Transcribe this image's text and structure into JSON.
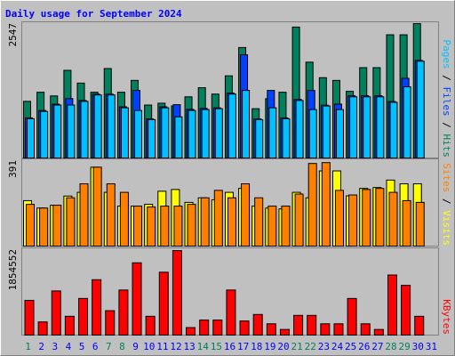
{
  "chart_data": [
    {
      "type": "bar",
      "title": "Daily usage for September 2024",
      "legend_separator": " / ",
      "ylim": [
        0,
        2547
      ],
      "yticks": [
        2547
      ],
      "series": [
        {
          "name": "Hits",
          "color": "#00805c",
          "values": [
            1073,
            1246,
            1176,
            1661,
            1419,
            1246,
            1695,
            1246,
            1470,
            1003,
            1038,
            986,
            1159,
            1332,
            1211,
            1557,
            2093,
            934,
            1124,
            1246,
            2481,
            1816,
            1522,
            1470,
            1263,
            1712,
            1712,
            2335,
            2335,
            2547,
            0
          ]
        },
        {
          "name": "Files",
          "color": "#0040ff",
          "values": [
            760,
            900,
            1020,
            1125,
            1090,
            1210,
            1210,
            970,
            1280,
            740,
            970,
            1010,
            920,
            940,
            950,
            1230,
            1955,
            740,
            1280,
            760,
            1110,
            1280,
            1000,
            1020,
            1180,
            1180,
            1180,
            1070,
            1510,
            1850,
            0
          ]
        },
        {
          "name": "Pages",
          "color": "#00c0ff",
          "values": [
            744,
            882,
            1003,
            1003,
            1073,
            1194,
            1194,
            951,
            900,
            727,
            951,
            779,
            900,
            917,
            934,
            1211,
            1280,
            727,
            951,
            744,
            1090,
            917,
            986,
            917,
            1159,
            1159,
            1159,
            1055,
            1349,
            1834,
            0
          ]
        }
      ]
    },
    {
      "type": "bar",
      "legend_separator": " / ",
      "ylim": [
        0,
        391
      ],
      "yticks": [
        391
      ],
      "series": [
        {
          "name": "Visits",
          "color": "#ffff00",
          "values": [
            208,
            174,
            187,
            229,
            246,
            361,
            246,
            183,
            183,
            191,
            251,
            259,
            200,
            221,
            212,
            246,
            264,
            183,
            174,
            170,
            246,
            221,
            344,
            344,
            230,
            264,
            268,
            302,
            285,
            285,
            0
          ]
        },
        {
          "name": "Sites",
          "color": "#ff8000",
          "values": [
            191,
            174,
            187,
            221,
            285,
            361,
            285,
            246,
            183,
            179,
            183,
            183,
            191,
            221,
            255,
            221,
            285,
            221,
            183,
            183,
            238,
            378,
            382,
            255,
            234,
            259,
            264,
            246,
            208,
            200,
            0
          ]
        }
      ]
    },
    {
      "type": "bar",
      "ylim": [
        0,
        1854552
      ],
      "yticks": [
        1854552
      ],
      "categories": [
        "1",
        "2",
        "3",
        "4",
        "5",
        "6",
        "7",
        "8",
        "9",
        "10",
        "11",
        "12",
        "13",
        "14",
        "15",
        "16",
        "17",
        "18",
        "19",
        "20",
        "21",
        "22",
        "23",
        "24",
        "25",
        "26",
        "27",
        "28",
        "29",
        "30",
        "31"
      ],
      "category_colors": [
        "#00805c",
        "#0000ff",
        "#0000ff",
        "#0000ff",
        "#0000ff",
        "#0000ff",
        "#00805c",
        "#00805c",
        "#0000ff",
        "#0000ff",
        "#0000ff",
        "#0000ff",
        "#0000ff",
        "#00805c",
        "#00805c",
        "#0000ff",
        "#0000ff",
        "#0000ff",
        "#0000ff",
        "#0000ff",
        "#00805c",
        "#00805c",
        "#0000ff",
        "#0000ff",
        "#0000ff",
        "#0000ff",
        "#0000ff",
        "#00805c",
        "#00805c",
        "#0000ff",
        "#0000ff"
      ],
      "series": [
        {
          "name": "KBytes",
          "color": "#ff0000",
          "values": [
            754000,
            285000,
            958000,
            408000,
            795000,
            1202000,
            530000,
            978000,
            1569000,
            408000,
            1365000,
            1834000,
            163000,
            326000,
            326000,
            978000,
            306000,
            448000,
            245000,
            122000,
            428000,
            428000,
            245000,
            245000,
            795000,
            245000,
            122000,
            1304000,
            1080000,
            408000,
            0
          ]
        }
      ]
    }
  ]
}
